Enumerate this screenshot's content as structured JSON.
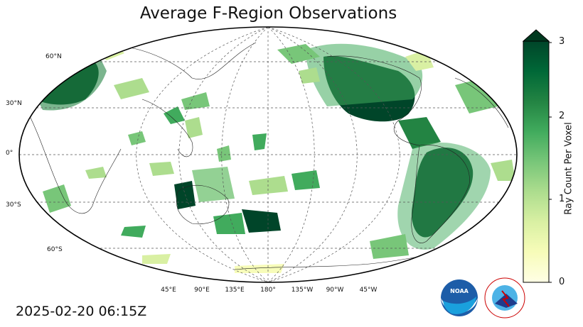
{
  "title": "Average F-Region Observations",
  "timestamp": "2025-02-20 06:15Z",
  "lat_labels": [
    "60°N",
    "30°N",
    "0°",
    "30°S",
    "60°S"
  ],
  "lon_labels": [
    "45°E",
    "90°E",
    "135°E",
    "180°",
    "135°W",
    "90°W",
    "45°W"
  ],
  "colorbar": {
    "title": "Ray Count Per Voxel",
    "ticks": [
      "0",
      "1",
      "2",
      "3"
    ],
    "min": 0,
    "max": 3,
    "colors": [
      "#ffffe5",
      "#f7fcb9",
      "#d9f0a3",
      "#addd8e",
      "#78c679",
      "#41ab5d",
      "#238443",
      "#006837",
      "#004529"
    ]
  },
  "logos": {
    "noaa": "NOAA",
    "nws": "NATIONAL WEATHER SERVICE"
  }
}
